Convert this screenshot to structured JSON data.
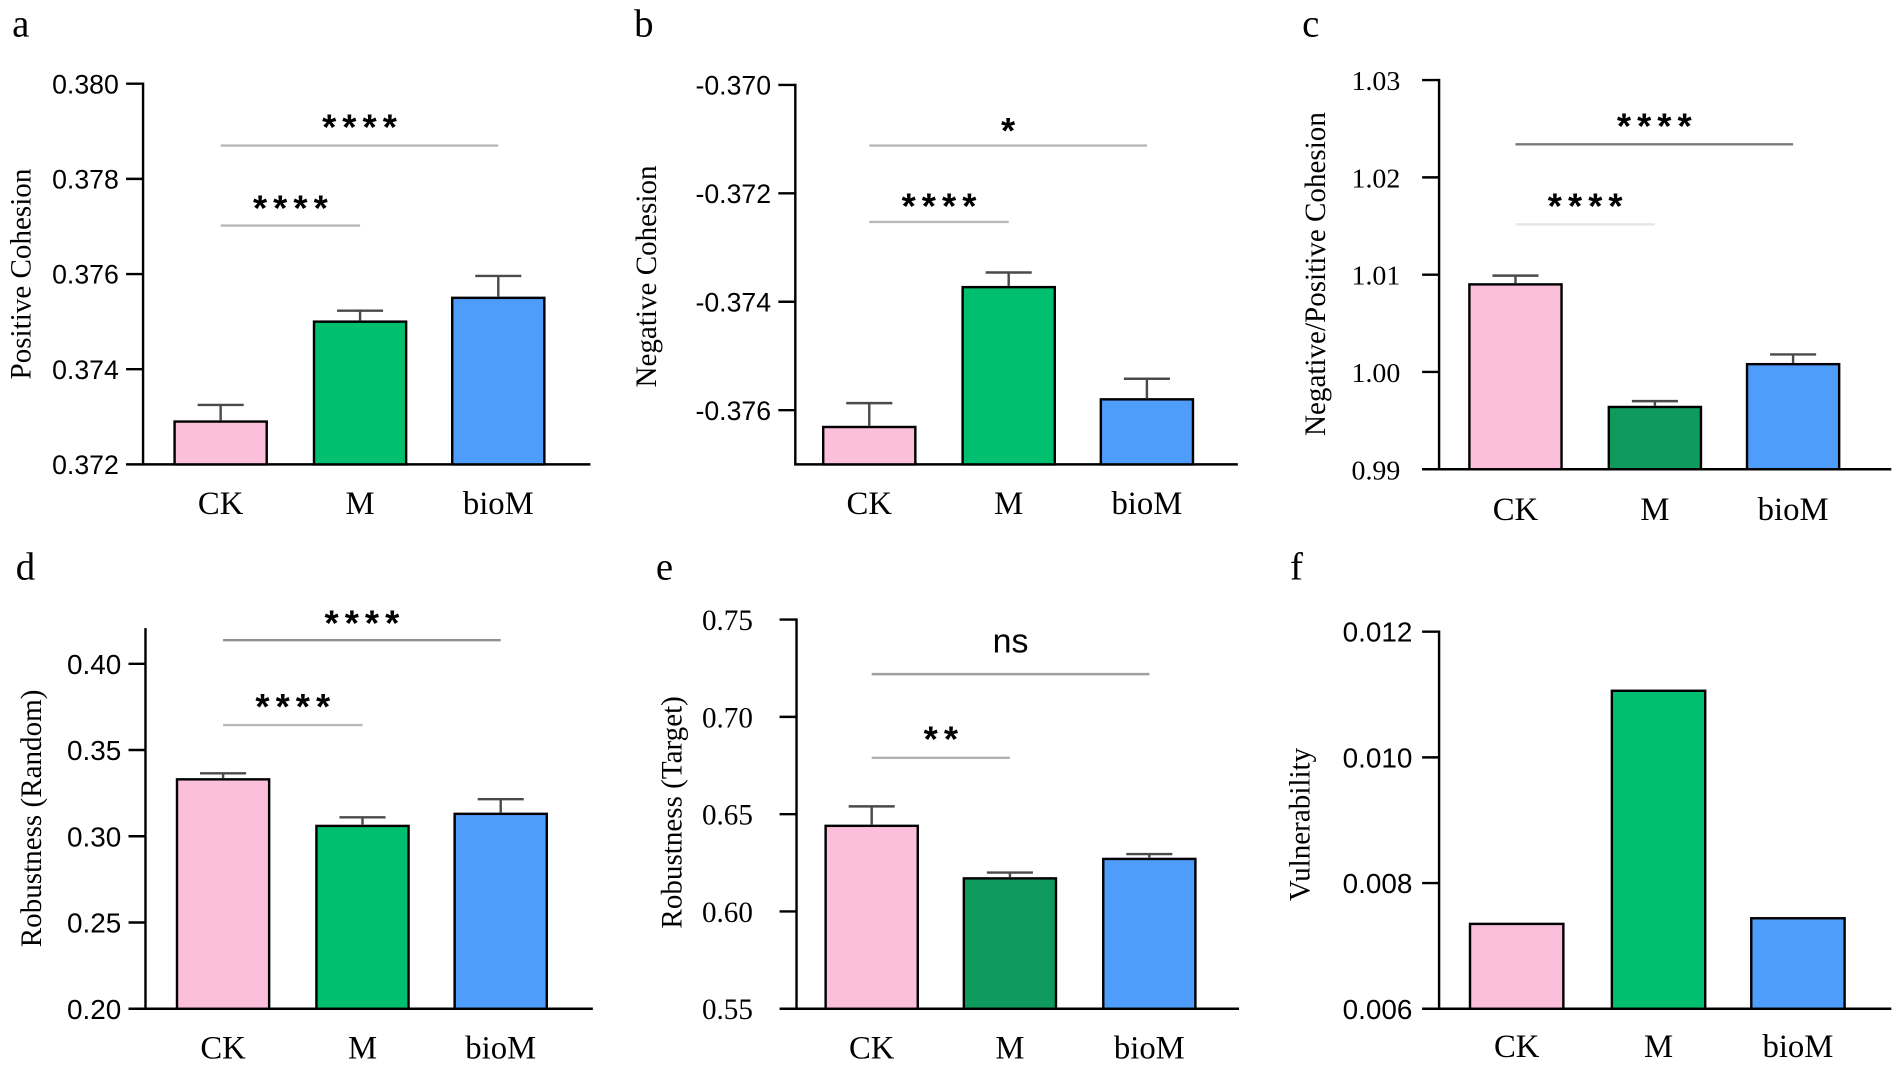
{
  "chart_data": [
    {
      "panel": "a",
      "type": "bar",
      "categories": [
        "CK",
        "M",
        "bioM"
      ],
      "values": [
        0.3729,
        0.375,
        0.3755
      ],
      "errors": [
        0.00035,
        0.00023,
        0.00046
      ],
      "xlabel": "",
      "ylabel": "Positive Cohesion",
      "ylim": [
        0.372,
        0.38
      ],
      "yticks": [
        "0.372",
        "0.374",
        "0.376",
        "0.378",
        "0.380"
      ],
      "colors": [
        "#fbbfdc",
        "#00bf6f",
        "#4f9dfa"
      ],
      "significance": [
        {
          "groups": [
            0,
            1
          ],
          "label": "****"
        },
        {
          "groups": [
            0,
            2
          ],
          "label": "****"
        }
      ]
    },
    {
      "panel": "b",
      "type": "bar",
      "categories": [
        "CK",
        "M",
        "bioM"
      ],
      "values": [
        -0.37631,
        -0.37373,
        -0.3758
      ],
      "errors": [
        0.00044,
        0.00027,
        0.00038
      ],
      "xlabel": "",
      "ylabel": "Negative Cohesion",
      "ylim": [
        -0.377,
        -0.37
      ],
      "yticks": [
        "-0.370",
        "-0.372",
        "-0.374",
        "-0.376"
      ],
      "colors": [
        "#fbbfdc",
        "#00bf6f",
        "#4f9dfa"
      ],
      "significance": [
        {
          "groups": [
            0,
            1
          ],
          "label": "****"
        },
        {
          "groups": [
            0,
            2
          ],
          "label": "*"
        }
      ]
    },
    {
      "panel": "c",
      "type": "bar",
      "categories": [
        "CK",
        "M",
        "bioM"
      ],
      "values": [
        1.009,
        0.9964,
        1.0008
      ],
      "errors": [
        0.0009,
        0.0006,
        0.001
      ],
      "xlabel": "",
      "ylabel": "Negative/Positive Cohesion",
      "ylim": [
        0.99,
        1.03
      ],
      "yticks": [
        "0.99",
        "1.00",
        "1.01",
        "1.02",
        "1.03"
      ],
      "colors": [
        "#fbbfdc",
        "#0f9b5e",
        "#4f9dfa"
      ],
      "significance": [
        {
          "groups": [
            0,
            1
          ],
          "label": "****"
        },
        {
          "groups": [
            0,
            2
          ],
          "label": "****"
        }
      ]
    },
    {
      "panel": "d",
      "type": "bar",
      "categories": [
        "CK",
        "M",
        "bioM"
      ],
      "values": [
        0.333,
        0.306,
        0.313
      ],
      "errors": [
        0.0035,
        0.005,
        0.0085
      ],
      "xlabel": "",
      "ylabel": "Robustness (Random)",
      "ylim": [
        0.2,
        0.42
      ],
      "yticks": [
        "0.20",
        "0.25",
        "0.30",
        "0.35",
        "0.40"
      ],
      "colors": [
        "#fbbfdc",
        "#00bf6f",
        "#4f9dfa"
      ],
      "significance": [
        {
          "groups": [
            0,
            1
          ],
          "label": "****"
        },
        {
          "groups": [
            0,
            2
          ],
          "label": "****"
        }
      ]
    },
    {
      "panel": "e",
      "type": "bar",
      "categories": [
        "CK",
        "M",
        "bioM"
      ],
      "values": [
        0.644,
        0.617,
        0.627
      ],
      "errors": [
        0.01,
        0.003,
        0.0025
      ],
      "xlabel": "",
      "ylabel": "Robustness (Target)",
      "ylim": [
        0.55,
        0.75
      ],
      "yticks": [
        "0.55",
        "0.60",
        "0.65",
        "0.70",
        "0.75"
      ],
      "colors": [
        "#fbbfdc",
        "#0f9b5e",
        "#4f9dfa"
      ],
      "significance": [
        {
          "groups": [
            0,
            1
          ],
          "label": "**"
        },
        {
          "groups": [
            0,
            2
          ],
          "label": "ns"
        }
      ]
    },
    {
      "panel": "f",
      "type": "bar",
      "categories": [
        "CK",
        "M",
        "bioM"
      ],
      "values": [
        0.00735,
        0.01106,
        0.00744
      ],
      "errors": null,
      "xlabel": "",
      "ylabel": "Vulnerability",
      "ylim": [
        0.006,
        0.012
      ],
      "yticks": [
        "0.006",
        "0.008",
        "0.010",
        "0.012"
      ],
      "colors": [
        "#fbbfdc",
        "#00bf6f",
        "#4f9dfa"
      ],
      "significance": []
    }
  ]
}
